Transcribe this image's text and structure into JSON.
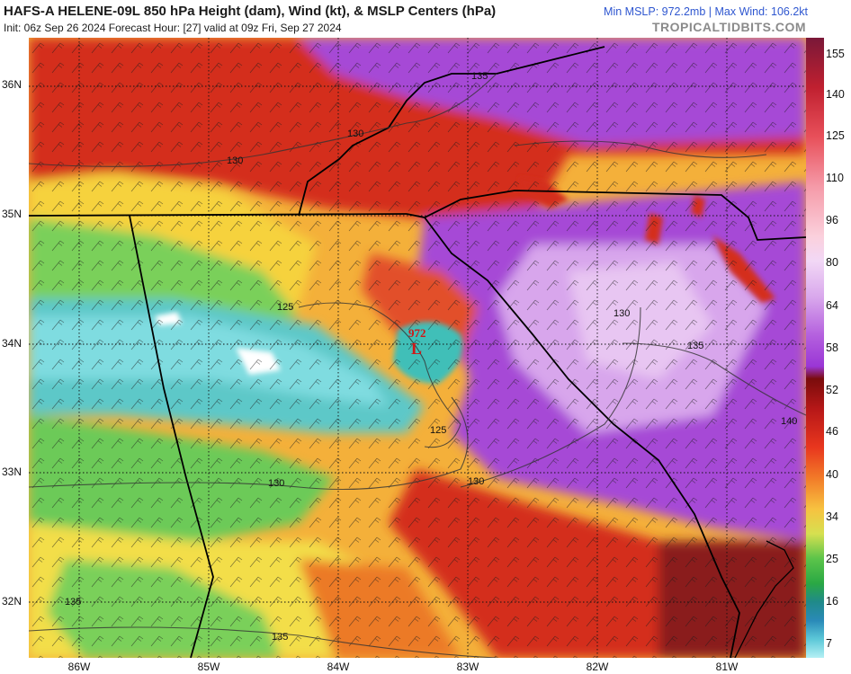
{
  "header": {
    "title": "HAFS-A HELENE-09L 850 hPa Height (dam), Wind (kt), & MSLP Centers (hPa)",
    "subtitle": "Init: 06z Sep 26 2024   Forecast Hour: [27]   valid at 09z Fri, Sep 27 2024",
    "stats": "Min MSLP: 972.2mb  |  Max Wind: 106.2kt",
    "brand": "TROPICALTIDBITS.COM"
  },
  "axes": {
    "lat_labels": [
      "36N",
      "35N",
      "34N",
      "33N",
      "32N"
    ],
    "lon_labels": [
      "86W",
      "85W",
      "84W",
      "83W",
      "82W",
      "81W"
    ]
  },
  "colorbar": {
    "labels": [
      "155",
      "140",
      "125",
      "110",
      "96",
      "80",
      "64",
      "58",
      "52",
      "46",
      "40",
      "34",
      "25",
      "16",
      "7"
    ]
  },
  "map": {
    "low_center": {
      "pressure": "972",
      "symbol": "L",
      "color": "#d01818"
    },
    "height_contours": [
      "135",
      "130",
      "130",
      "125",
      "125",
      "130",
      "135",
      "130",
      "135",
      "140",
      "130",
      "135"
    ]
  }
}
